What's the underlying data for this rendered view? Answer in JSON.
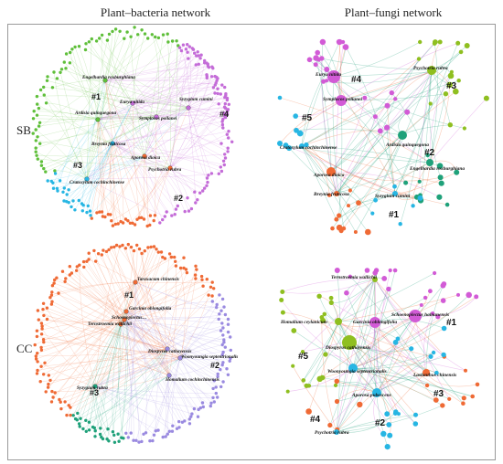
{
  "figure": {
    "col_titles": {
      "bacteria": "Plant–bacteria network",
      "fungi": "Plant–fungi network"
    },
    "row_labels": {
      "sb": "SB",
      "cc": "CC"
    }
  },
  "colors": {
    "green": "#5fbf3a",
    "violet": "#c46cd8",
    "orange": "#ef6a35",
    "cyan": "#27b6e3",
    "teal": "#1fa17a",
    "lavender": "#9a8ae0",
    "olive": "#8fbf20",
    "magenta": "#d25bd6"
  },
  "panels": {
    "sb_bacteria": {
      "plants": [
        "Engelhardia roxburghiana",
        "Eurya nitida",
        "Syzygium cumini",
        "Ardisia quinquegona",
        "Symplocos poilanei",
        "Breynia fruticosa",
        "Aporosa dioica",
        "Psychotria rubra",
        "Cratoxylum cochinchinense"
      ],
      "modules": [
        "#1",
        "#4",
        "#3",
        "#2"
      ]
    },
    "sb_fungi": {
      "plants": [
        "Eurya nitida",
        "Symplocos poilanei",
        "Psychotria rubra",
        "Cratoxylum cochinchinense",
        "Ardisia quinquegona",
        "Engelhardia roxburghiana",
        "Aporosa dioica",
        "Breynia fruticosa",
        "Syzygium cumini"
      ],
      "modules": [
        "#4",
        "#3",
        "#5",
        "#2",
        "#1"
      ]
    },
    "cc_bacteria": {
      "plants": [
        "Taraxacum chinensis",
        "Garcinia oblongifolia",
        "Schoenoplectus…",
        "Ternstroemia wallichii",
        "Diospyros cathayensis",
        "Woonyoungia septentrionalis",
        "Syzygium rubra",
        "Homalium cochinchinensis"
      ],
      "modules": [
        "#1",
        "#2",
        "#3"
      ]
    },
    "cc_fungi": {
      "plants": [
        "Ternstroemia wallichii",
        "Schoenoplectus hainanensis",
        "Homalium ceylanicum",
        "Garcinia oblongifolia",
        "Diospyros cathayensis",
        "Woonyoungia septentrionalis",
        "Lasianthus chinensis",
        "Aporosa pubescens",
        "Psychotria rubra"
      ],
      "modules": [
        "#1",
        "#5",
        "#3",
        "#4",
        "#2"
      ]
    }
  }
}
